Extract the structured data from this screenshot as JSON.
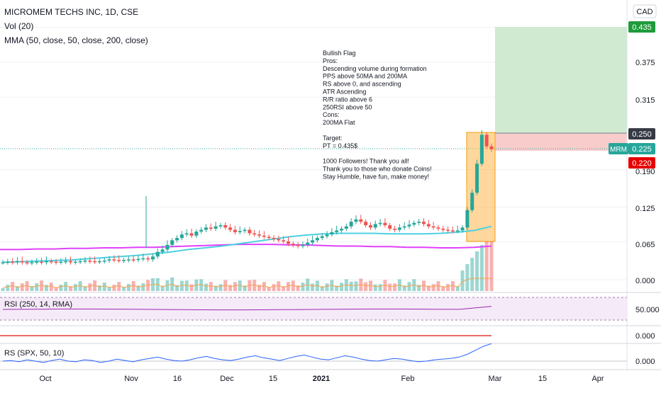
{
  "header": {
    "symbol_line": "MICROMEM TECHS INC, 1D, CSE",
    "vol_label": "Vol (20)",
    "mma_label": "MMA (50, close, 50, close, 200, close)",
    "currency": "CAD"
  },
  "price_axis": {
    "ticks": [
      "0.375",
      "0.315",
      "0.190",
      "0.125",
      "0.065",
      "0.000"
    ],
    "badges": {
      "target": "0.435",
      "entry": "0.250",
      "symbol": "MRM",
      "last": "0.225",
      "stop": "0.220"
    }
  },
  "annotation": [
    "Bullish Flag",
    "Pros:",
    "Descending volume during formation",
    "PPS above 50MA and 200MA",
    "RS above 0, and ascending",
    "ATR Ascending",
    "R/R ratio above 6",
    "250RSI above 50",
    "Cons:",
    "200MA Flat",
    "",
    "Target:",
    "PT = 0.435$",
    "",
    "1000 Followers! Thank you all!",
    "Thank you to those who donate Coins!",
    "Stay Humble, have fun, make money!"
  ],
  "rsi_panel": {
    "label": "RSI (250, 14, RMA)",
    "ticks": [
      "50.000"
    ]
  },
  "atr_panel": {
    "ticks": [
      "0.000"
    ]
  },
  "rs_panel": {
    "label": "RS (SPX, 50, 10)",
    "ticks": [
      "0.000"
    ]
  },
  "time_axis": {
    "labels": [
      "Oct",
      "Nov",
      "16",
      "Dec",
      "15",
      "2021",
      "Feb",
      "Mar",
      "15",
      "Apr"
    ]
  },
  "colors": {
    "up": "#26a69a",
    "down": "#ef5350",
    "ma50": "#4dd0e1",
    "ma200": "#e040fb",
    "target_zone": "#c8e6c9",
    "stop_zone": "#f8bbbb",
    "flag": "#ffb74d",
    "rsi_line": "#9c27b0",
    "rs_line": "#2962ff",
    "atr_line": "#e53935"
  },
  "chart_data": {
    "type": "candlestick",
    "x_range": [
      "2020-09-21",
      "2021-04-12"
    ],
    "ylim": [
      -0.02,
      0.47
    ],
    "position": {
      "target": 0.435,
      "entry": 0.25,
      "stop": 0.22,
      "last": 0.225
    },
    "rsi_level": 50,
    "series": [
      {
        "name": "price",
        "values": [
          0.03,
          0.031,
          0.03,
          0.032,
          0.03,
          0.029,
          0.03,
          0.031,
          0.03,
          0.032,
          0.031,
          0.03,
          0.031,
          0.032,
          0.03,
          0.031,
          0.032,
          0.033,
          0.032,
          0.031,
          0.032,
          0.033,
          0.035,
          0.034,
          0.033,
          0.034,
          0.035,
          0.034,
          0.036,
          0.037,
          0.035,
          0.04,
          0.048,
          0.052,
          0.06,
          0.068,
          0.072,
          0.078,
          0.08,
          0.076,
          0.083,
          0.086,
          0.09,
          0.088,
          0.092,
          0.094,
          0.09,
          0.086,
          0.082,
          0.084,
          0.086,
          0.08,
          0.078,
          0.076,
          0.074,
          0.072,
          0.07,
          0.068,
          0.066,
          0.062,
          0.06,
          0.058,
          0.06,
          0.064,
          0.068,
          0.072,
          0.075,
          0.078,
          0.082,
          0.085,
          0.088,
          0.092,
          0.1,
          0.104,
          0.1,
          0.094,
          0.09,
          0.096,
          0.098,
          0.094,
          0.088,
          0.086,
          0.09,
          0.092,
          0.095,
          0.098,
          0.1,
          0.096,
          0.092,
          0.09,
          0.088,
          0.086,
          0.085,
          0.084,
          0.085,
          0.09,
          0.12,
          0.15,
          0.2,
          0.25,
          0.23,
          0.225
        ]
      },
      {
        "name": "MA50",
        "values": [
          0.03,
          0.031,
          0.032,
          0.033,
          0.034,
          0.036,
          0.038,
          0.04,
          0.042,
          0.045,
          0.048,
          0.052,
          0.055,
          0.058,
          0.062,
          0.066,
          0.07,
          0.074,
          0.077,
          0.079,
          0.08,
          0.08,
          0.08,
          0.079,
          0.079,
          0.079,
          0.08,
          0.082,
          0.085,
          0.092
        ]
      },
      {
        "name": "MA200",
        "values": [
          0.052,
          0.052,
          0.053,
          0.053,
          0.054,
          0.054,
          0.055,
          0.055,
          0.056,
          0.056,
          0.057,
          0.058,
          0.059,
          0.06,
          0.061,
          0.061,
          0.061,
          0.06,
          0.06,
          0.059,
          0.058,
          0.058,
          0.057,
          0.057,
          0.056,
          0.056,
          0.055,
          0.055,
          0.056,
          0.058
        ]
      }
    ]
  }
}
